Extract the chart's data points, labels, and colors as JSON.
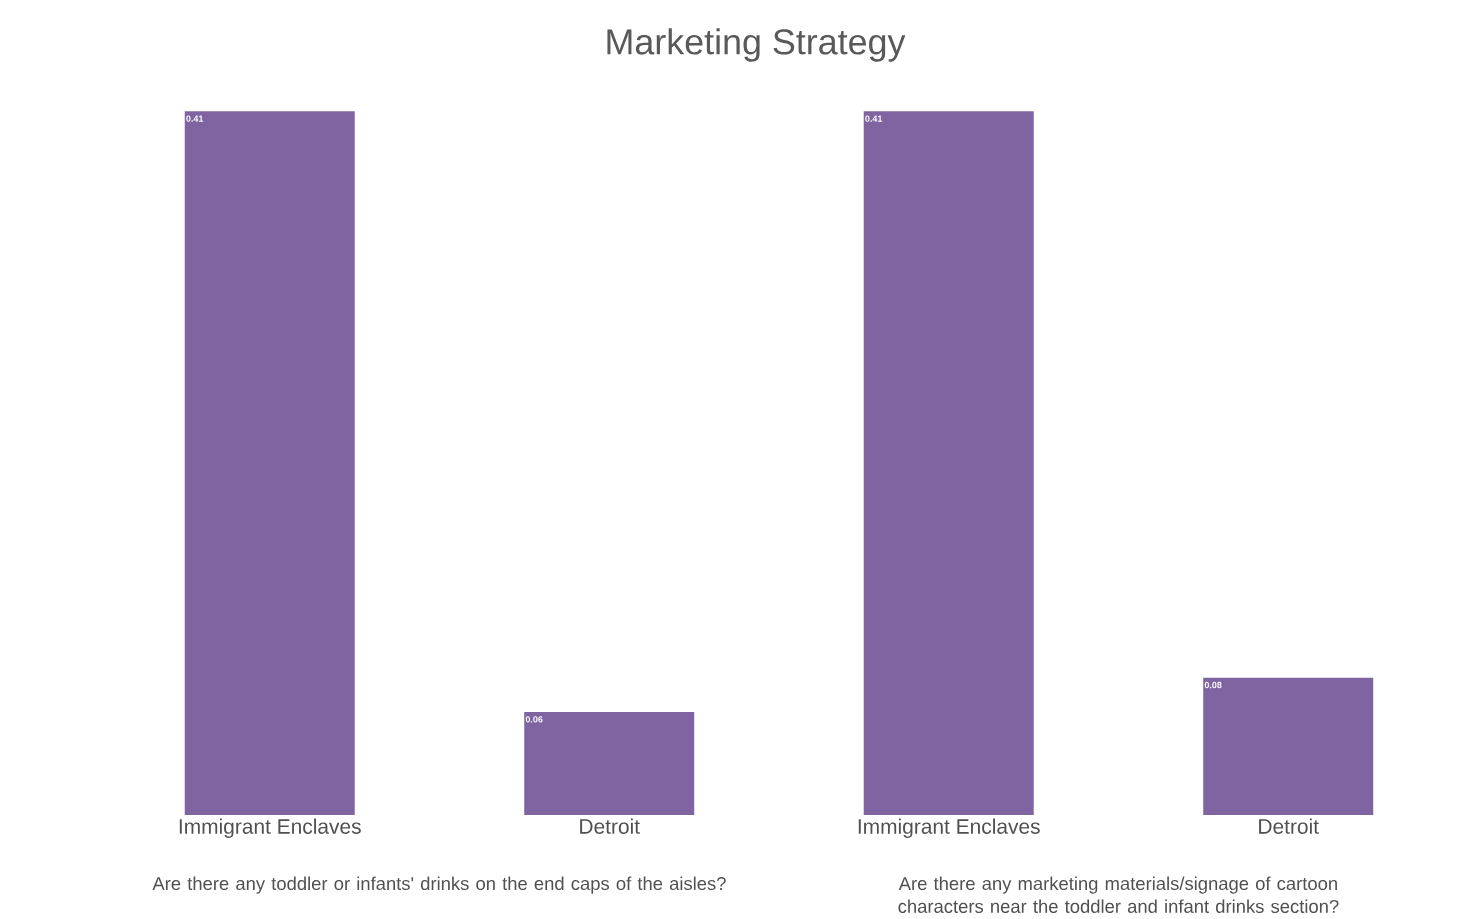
{
  "chart_data": {
    "type": "bar",
    "title": "Marketing Strategy",
    "categories": [
      "Immigrant Enclaves",
      "Detroit",
      "Immigrant Enclaves",
      "Detroit"
    ],
    "values": [
      0.41,
      0.06,
      0.41,
      0.08
    ],
    "color": "#8064a2",
    "data_labels": true,
    "annotations": [
      "Are there any toddler or infants' drinks on the end caps of the aisles?",
      "Are there any marketing materials/signage of cartoon characters near the toddler and infant drinks section?"
    ]
  }
}
